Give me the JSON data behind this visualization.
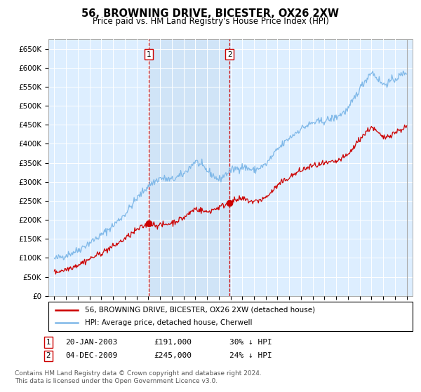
{
  "title": "56, BROWNING DRIVE, BICESTER, OX26 2XW",
  "subtitle": "Price paid vs. HM Land Registry's House Price Index (HPI)",
  "ylabel_ticks": [
    "£0",
    "£50K",
    "£100K",
    "£150K",
    "£200K",
    "£250K",
    "£300K",
    "£350K",
    "£400K",
    "£450K",
    "£500K",
    "£550K",
    "£600K",
    "£650K"
  ],
  "ytick_values": [
    0,
    50000,
    100000,
    150000,
    200000,
    250000,
    300000,
    350000,
    400000,
    450000,
    500000,
    550000,
    600000,
    650000
  ],
  "background_color": "#ffffff",
  "plot_bg_color": "#ddeeff",
  "grid_color": "#c8d8e8",
  "hpi_color": "#7fb8e8",
  "hpi_fill_color": "#c8dff5",
  "price_color": "#cc0000",
  "annotation_color": "#cc0000",
  "shaded_region_color": "#d0e4f7",
  "transaction1": {
    "date": "20-JAN-2003",
    "price": 191000,
    "label": "1",
    "pct": "30% ↓ HPI",
    "year": 2003.054
  },
  "transaction2": {
    "date": "04-DEC-2009",
    "price": 245000,
    "label": "2",
    "pct": "24% ↓ HPI",
    "year": 2009.921
  },
  "legend_label1": "56, BROWNING DRIVE, BICESTER, OX26 2XW (detached house)",
  "legend_label2": "HPI: Average price, detached house, Cherwell",
  "footer": "Contains HM Land Registry data © Crown copyright and database right 2024.\nThis data is licensed under the Open Government Licence v3.0.",
  "xlim_start": 1994.5,
  "xlim_end": 2025.5,
  "ylim_min": 0,
  "ylim_max": 675000,
  "hpi_anchors_years": [
    1995,
    1996,
    1997,
    1998,
    1999,
    2000,
    2001,
    2002,
    2003,
    2004,
    2005,
    2006,
    2007,
    2008,
    2009,
    2010,
    2011,
    2012,
    2013,
    2014,
    2015,
    2016,
    2017,
    2018,
    2019,
    2020,
    2021,
    2022,
    2023,
    2024,
    2025
  ],
  "hpi_anchors_vals": [
    97000,
    107000,
    120000,
    140000,
    160000,
    185000,
    215000,
    255000,
    290000,
    310000,
    305000,
    320000,
    355000,
    330000,
    305000,
    330000,
    340000,
    330000,
    345000,
    385000,
    415000,
    440000,
    455000,
    460000,
    470000,
    490000,
    545000,
    590000,
    555000,
    570000,
    590000
  ],
  "price_anchors_years": [
    1995,
    1996,
    1997,
    1998,
    1999,
    2000,
    2001,
    2002,
    2003.054,
    2004,
    2005,
    2006,
    2007,
    2008,
    2009.921,
    2010,
    2011,
    2012,
    2013,
    2014,
    2015,
    2016,
    2017,
    2018,
    2019,
    2020,
    2021,
    2022,
    2023,
    2024,
    2025
  ],
  "price_anchors_vals": [
    62000,
    70000,
    82000,
    97000,
    113000,
    130000,
    150000,
    173000,
    191000,
    185000,
    192000,
    205000,
    230000,
    220000,
    245000,
    248000,
    255000,
    247000,
    258000,
    290000,
    312000,
    330000,
    342000,
    347000,
    353000,
    370000,
    413000,
    445000,
    415000,
    430000,
    445000
  ]
}
